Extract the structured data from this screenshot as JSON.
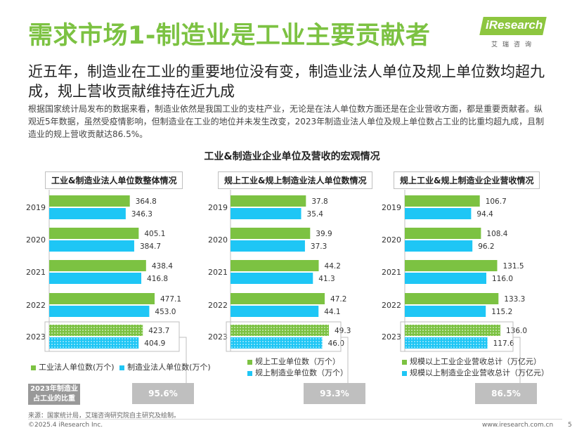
{
  "header": {
    "title": "需求市场1-制造业是工业主要贡献者",
    "logo_text": "iResearch",
    "logo_sub": "艾瑞咨询"
  },
  "headline": "近五年，制造业在工业的重要地位没有变，制造业法人单位及规上单位数均超九成，规上营收贡献维持在近九成",
  "body": "根据国家统计局发布的数据来看，制造业依然是我国工业的支柱产业，无论是在法人单位数方面还是在企业营收方面，都是重要贡献者。纵观近5年数据，虽然受疫情影响，但制造业在工业的地位并未发生改变，2023年制造业法人单位及规上单位数占工业的比重均超九成，且制造业的规上营收贡献达86.5%。",
  "chart_title": "工业&制造业企业单位及营收的宏观情况",
  "left_note": "2023年制造业占工业的比重",
  "colors": {
    "green": "#7cc242",
    "blue": "#1ec6f5",
    "box": "#bfbfbf"
  },
  "chart_data": [
    {
      "type": "bar",
      "orientation": "horizontal",
      "title": "工业&制造业法人单位数整体情况",
      "categories": [
        "2019",
        "2020",
        "2021",
        "2022",
        "2023"
      ],
      "series": [
        {
          "name": "工业法人单位数(万个)",
          "values": [
            364.8,
            405.1,
            438.4,
            477.1,
            423.7
          ],
          "labels": [
            "364.8",
            "405.1",
            "438.4",
            "477.1",
            "423.7"
          ]
        },
        {
          "name": "制造业法人单位数(万个)",
          "values": [
            346.3,
            384.7,
            416.8,
            453.0,
            404.9
          ],
          "labels": [
            "346.3",
            "384.7",
            "416.8",
            "453.0",
            "404.9"
          ]
        }
      ],
      "highlight_category": "2023",
      "share_2023": "95.6%"
    },
    {
      "type": "bar",
      "orientation": "horizontal",
      "title": "规上工业&规上制造业法人单位数情况",
      "categories": [
        "2019",
        "2020",
        "2021",
        "2022",
        "2023"
      ],
      "series": [
        {
          "name": "规上工业单位数（万个）",
          "values": [
            37.8,
            39.9,
            44.2,
            47.2,
            49.3
          ],
          "labels": [
            "37.8",
            "39.9",
            "44.2",
            "47.2",
            "49.3"
          ]
        },
        {
          "name": "规上制造业单位数（万个）",
          "values": [
            35.4,
            37.3,
            41.3,
            44.1,
            46.0
          ],
          "labels": [
            "35.4",
            "37.3",
            "41.3",
            "44.1",
            "46.0"
          ]
        }
      ],
      "highlight_category": "2023",
      "share_2023": "93.3%"
    },
    {
      "type": "bar",
      "orientation": "horizontal",
      "title": "规上工业&规上制造业企业营收情况",
      "categories": [
        "2019",
        "2020",
        "2021",
        "2022",
        "2023"
      ],
      "series": [
        {
          "name": "规模以上工业企业营收总计（万亿元）",
          "values": [
            106.7,
            108.4,
            131.5,
            133.3,
            136.0
          ],
          "labels": [
            "106.7",
            "108.4",
            "131.5",
            "133.3",
            "136.0"
          ]
        },
        {
          "name": "规模以上制造业企业营收总计（万亿元）",
          "values": [
            94.4,
            96.2,
            116.0,
            115.2,
            117.6
          ],
          "labels": [
            "94.4",
            "96.2",
            "116.0",
            "115.2",
            "117.6"
          ]
        }
      ],
      "highlight_category": "2023",
      "share_2023": "86.5%"
    }
  ],
  "footer": {
    "source": "来源：国家统计局，艾瑞咨询研究院自主研究及绘制。",
    "copyright": "©2025.4 iResearch Inc.",
    "website": "www.iresearch.com.cn",
    "page": "5"
  }
}
